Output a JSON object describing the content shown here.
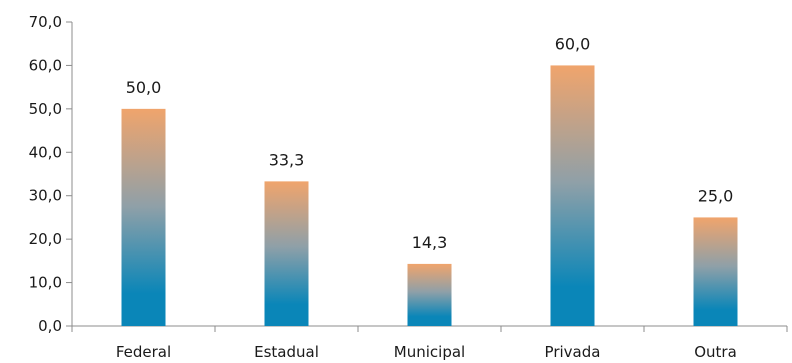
{
  "chart_data": {
    "type": "bar",
    "categories": [
      "Federal",
      "Estadual",
      "Municipal",
      "Privada",
      "Outra"
    ],
    "values": [
      50.0,
      33.3,
      14.3,
      60.0,
      25.0
    ],
    "value_labels": [
      "50,0",
      "33,3",
      "14,3",
      "60,0",
      "25,0"
    ],
    "ylim": [
      0,
      70
    ],
    "yticks": [
      0,
      10,
      20,
      30,
      40,
      50,
      60,
      70
    ],
    "ytick_labels": [
      "0,0",
      "10,0",
      "20,0",
      "30,0",
      "40,0",
      "50,0",
      "60,0",
      "70,0"
    ],
    "title": "",
    "xlabel": "",
    "ylabel": "",
    "grid": false,
    "colors": {
      "bar_top": "#f0a46c",
      "bar_mid": "#8fa0a8",
      "bar_bottom": "#0a86b8",
      "axis": "#8c8c8c"
    }
  }
}
